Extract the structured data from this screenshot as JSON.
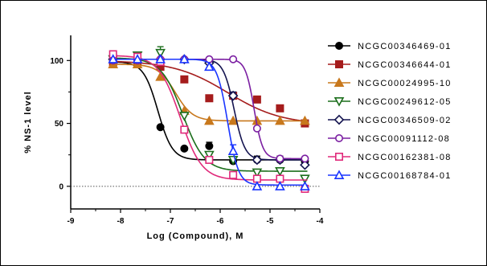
{
  "chart_data": {
    "type": "line",
    "xlabel": "Log (Compound), M",
    "ylabel": "% NS-1 level",
    "xlim": [
      -9,
      -4
    ],
    "ylim": [
      -18,
      120
    ],
    "xticks": [
      -9,
      -8,
      -7,
      -6,
      -5,
      -4
    ],
    "xtick_labels": [
      "-9",
      "-8",
      "-7",
      "-6",
      "-5",
      "-4"
    ],
    "yticks": [
      0,
      50,
      100
    ],
    "ytick_labels": [
      "0",
      "50",
      "100"
    ],
    "zero_reference_line": true,
    "grid": false,
    "legend_position": "right",
    "x": [
      -8.15,
      -7.66,
      -7.2,
      -6.72,
      -6.22,
      -5.74,
      -5.26,
      -4.8,
      -4.3
    ],
    "series": [
      {
        "name": "NCGC00346469-01",
        "color": "#000000",
        "marker": "circle-filled",
        "values": [
          99,
          99,
          47,
          30,
          32,
          20,
          21,
          21,
          20
        ],
        "errors": [
          0,
          0,
          0,
          0,
          3,
          3,
          3,
          3,
          0
        ],
        "fit": {
          "top": 99,
          "bottom": 21,
          "logec50": -7.25,
          "hill": 3.0
        }
      },
      {
        "name": "NCGC00346644-01",
        "color": "#a51c1c",
        "marker": "square-filled",
        "values": [
          98,
          98,
          95,
          85,
          70,
          72,
          69,
          62,
          50
        ],
        "errors": [
          0,
          0,
          0,
          0,
          0,
          0,
          0,
          0,
          0
        ],
        "fit": {
          "top": 100,
          "bottom": 49,
          "logec50": -5.85,
          "hill": 0.8
        }
      },
      {
        "name": "NCGC00024995-10",
        "color": "#c8781c",
        "marker": "triangle-up-filled",
        "values": [
          97,
          97,
          87,
          60,
          52,
          52,
          52,
          52,
          52
        ],
        "errors": [
          0,
          0,
          0,
          0,
          0,
          0,
          0,
          0,
          0
        ],
        "fit": {
          "top": 97,
          "bottom": 52,
          "logec50": -6.9,
          "hill": 2.5
        }
      },
      {
        "name": "NCGC00249612-05",
        "color": "#1c6e1c",
        "marker": "triangle-down-open",
        "values": [
          101,
          104,
          106,
          56,
          25,
          21,
          11,
          12,
          6
        ],
        "errors": [
          0,
          0,
          5,
          0,
          0,
          0,
          0,
          0,
          0
        ],
        "fit": {
          "top": 102,
          "bottom": 12,
          "logec50": -6.75,
          "hill": 2.0
        }
      },
      {
        "name": "NCGC00346509-02",
        "color": "#141450",
        "marker": "diamond-open",
        "values": [
          101,
          101,
          101,
          101,
          98,
          72,
          21,
          21,
          17
        ],
        "errors": [
          0,
          0,
          0,
          0,
          0,
          3,
          0,
          0,
          0
        ],
        "fit": {
          "top": 101,
          "bottom": 21,
          "logec50": -5.72,
          "hill": 4.0
        }
      },
      {
        "name": "NCGC00091112-08",
        "color": "#7b1fa2",
        "marker": "circle-open",
        "values": [
          100,
          100,
          101,
          101,
          101,
          101,
          46,
          22,
          22
        ],
        "errors": [
          0,
          0,
          0,
          0,
          0,
          0,
          0,
          0,
          0
        ],
        "fit": {
          "top": 101,
          "bottom": 22,
          "logec50": -5.32,
          "hill": 5.0
        }
      },
      {
        "name": "NCGC00162381-08",
        "color": "#e0297a",
        "marker": "square-open",
        "values": [
          105,
          103,
          99,
          45,
          21,
          9,
          6,
          6,
          -2
        ],
        "errors": [
          0,
          0,
          0,
          0,
          0,
          0,
          0,
          0,
          0
        ],
        "fit": {
          "top": 104,
          "bottom": 5,
          "logec50": -6.8,
          "hill": 2.0
        }
      },
      {
        "name": "NCGC00168784-01",
        "color": "#1a35ff",
        "marker": "triangle-up-open",
        "values": [
          101,
          101,
          101,
          101,
          95,
          28,
          0,
          0,
          0
        ],
        "errors": [
          0,
          0,
          0,
          0,
          0,
          5,
          0,
          0,
          0
        ],
        "fit": {
          "top": 101,
          "bottom": 1,
          "logec50": -5.85,
          "hill": 4.0
        }
      }
    ]
  }
}
